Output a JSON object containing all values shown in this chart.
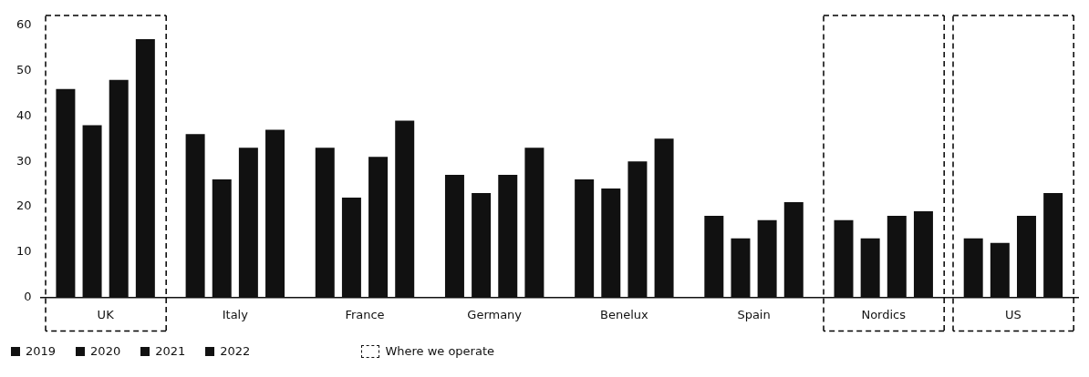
{
  "chart_data": {
    "type": "bar",
    "categories": [
      "UK",
      "Italy",
      "France",
      "Germany",
      "Benelux",
      "Spain",
      "Nordics",
      "US"
    ],
    "series": [
      {
        "name": "2019",
        "color": "#111111",
        "values": [
          46,
          36,
          33,
          27,
          26,
          18,
          17,
          13
        ]
      },
      {
        "name": "2020",
        "color": "#111111",
        "values": [
          38,
          26,
          22,
          23,
          24,
          13,
          13,
          12
        ]
      },
      {
        "name": "2021",
        "color": "#111111",
        "values": [
          48,
          33,
          31,
          27,
          30,
          17,
          18,
          18
        ]
      },
      {
        "name": "2022",
        "color": "#111111",
        "values": [
          57,
          37,
          39,
          33,
          35,
          21,
          19,
          23
        ]
      }
    ],
    "ylim": [
      0,
      60
    ],
    "yticks": [
      0,
      10,
      20,
      30,
      40,
      50,
      60
    ],
    "grid": false,
    "legend": "bottom left",
    "annotations": [
      "Where we operate"
    ]
  }
}
